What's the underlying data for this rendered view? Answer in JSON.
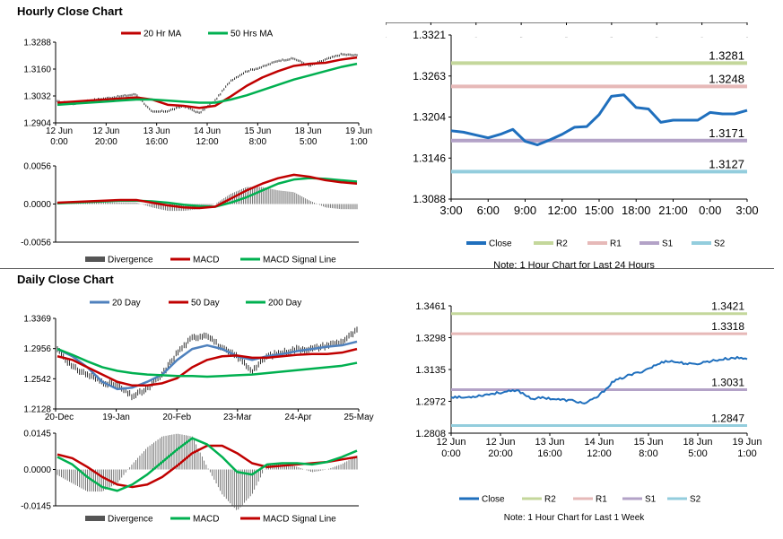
{
  "sections": {
    "hourly_title": "Hourly Close Chart",
    "daily_title": "Daily Close Chart"
  },
  "colors": {
    "ma_red": "#c00000",
    "ma_green": "#00b050",
    "ma_blue": "#4f81bd",
    "close_blue": "#1f6fbd",
    "r2": "#c4d79b",
    "r1": "#e6b9b8",
    "s1": "#b3a2c7",
    "s2": "#93cddd",
    "divergence": "#555555",
    "axis": "#000000"
  },
  "chart_data": [
    {
      "id": "hourly-price",
      "type": "line",
      "title": "",
      "legend": [
        "20 Hr MA",
        "50 Hrs MA"
      ],
      "y_ticks": [
        "1.3288",
        "1.3160",
        "1.3032",
        "1.2904"
      ],
      "ylim": [
        1.2904,
        1.3288
      ],
      "x_ticks": [
        [
          "12 Jun",
          "0:00"
        ],
        [
          "12 Jun",
          "20:00"
        ],
        [
          "13 Jun",
          "16:00"
        ],
        [
          "14 Jun",
          "12:00"
        ],
        [
          "15 Jun",
          "8:00"
        ],
        [
          "18 Jun",
          "5:00"
        ],
        [
          "19 Jun",
          "1:00"
        ]
      ],
      "close": [
        1.3005,
        1.2995,
        1.301,
        1.302,
        1.303,
        1.304,
        1.2955,
        1.296,
        1.2985,
        1.295,
        1.301,
        1.3105,
        1.315,
        1.317,
        1.32,
        1.321,
        1.3175,
        1.3205,
        1.323,
        1.3225
      ],
      "series": [
        {
          "name": "20 Hr MA",
          "values": [
            1.3,
            1.3005,
            1.301,
            1.3015,
            1.302,
            1.3025,
            1.3015,
            1.299,
            1.2985,
            1.2975,
            1.2985,
            1.303,
            1.308,
            1.312,
            1.315,
            1.3175,
            1.3185,
            1.319,
            1.3205,
            1.3215
          ]
        },
        {
          "name": "50 Hrs MA",
          "values": [
            1.299,
            1.2995,
            1.3,
            1.3005,
            1.301,
            1.3015,
            1.3015,
            1.301,
            1.3005,
            1.3,
            1.3,
            1.3015,
            1.3035,
            1.306,
            1.3085,
            1.311,
            1.313,
            1.315,
            1.317,
            1.3185
          ]
        }
      ]
    },
    {
      "id": "hourly-macd",
      "type": "line",
      "legend": [
        "Divergence",
        "MACD",
        "MACD Signal Line"
      ],
      "y_ticks": [
        "0.0056",
        "0.0000",
        "-0.0056"
      ],
      "ylim": [
        -0.0056,
        0.0056
      ],
      "macd": [
        0.0002,
        0.0003,
        0.0004,
        0.0005,
        0.0006,
        0.0006,
        0.0002,
        -0.0002,
        -0.0005,
        -0.0006,
        -0.0004,
        0.0008,
        0.002,
        0.003,
        0.0038,
        0.0043,
        0.004,
        0.0035,
        0.0032,
        0.003
      ],
      "signal": [
        0.0001,
        0.0002,
        0.0003,
        0.0004,
        0.0005,
        0.0005,
        0.0004,
        0.0002,
        -0.0001,
        -0.0003,
        -0.0004,
        0.0002,
        0.001,
        0.002,
        0.003,
        0.0036,
        0.0038,
        0.0037,
        0.0035,
        0.0033
      ]
    },
    {
      "id": "hourly-24h",
      "type": "line",
      "y_ticks": [
        "1.3321",
        "1.3263",
        "1.3204",
        "1.3146",
        "1.3088"
      ],
      "ylim": [
        1.3088,
        1.3321
      ],
      "x_ticks": [
        "3:00",
        "6:00",
        "9:00",
        "12:00",
        "15:00",
        "18:00",
        "21:00",
        "0:00",
        "3:00"
      ],
      "levels": [
        {
          "name": "R2",
          "value": 1.3281,
          "label": "1.3281"
        },
        {
          "name": "R1",
          "value": 1.3248,
          "label": "1.3248"
        },
        {
          "name": "S1",
          "value": 1.3171,
          "label": "1.3171"
        },
        {
          "name": "S2",
          "value": 1.3127,
          "label": "1.3127"
        }
      ],
      "close": [
        1.3185,
        1.3183,
        1.3179,
        1.3175,
        1.318,
        1.3187,
        1.317,
        1.3165,
        1.3172,
        1.318,
        1.319,
        1.3191,
        1.3208,
        1.3234,
        1.3236,
        1.3218,
        1.3216,
        1.3197,
        1.32,
        1.32,
        1.32,
        1.3211,
        1.3209,
        1.3209,
        1.3214
      ],
      "legend": [
        "Close",
        "R2",
        "R1",
        "S1",
        "S2"
      ],
      "note": "Note: 1 Hour Chart for Last 24 Hours"
    },
    {
      "id": "daily-price",
      "type": "line",
      "legend": [
        "20 Day",
        "50 Day",
        "200 Day"
      ],
      "y_ticks": [
        "1.3369",
        "1.2956",
        "1.2542",
        "1.2128"
      ],
      "ylim": [
        1.2128,
        1.3369
      ],
      "x_ticks": [
        "20-Dec",
        "19-Jan",
        "20-Feb",
        "23-Mar",
        "24-Apr",
        "25-May"
      ],
      "close": [
        1.295,
        1.27,
        1.26,
        1.25,
        1.245,
        1.23,
        1.24,
        1.26,
        1.29,
        1.31,
        1.315,
        1.295,
        1.285,
        1.265,
        1.285,
        1.29,
        1.295,
        1.295,
        1.3,
        1.305,
        1.32
      ],
      "series": [
        {
          "name": "20 Day",
          "values": [
            1.295,
            1.285,
            1.27,
            1.25,
            1.24,
            1.242,
            1.25,
            1.26,
            1.28,
            1.295,
            1.3,
            1.295,
            1.285,
            1.28,
            1.285,
            1.288,
            1.292,
            1.295,
            1.298,
            1.3,
            1.305
          ]
        },
        {
          "name": "50 Day",
          "values": [
            1.285,
            1.28,
            1.27,
            1.26,
            1.25,
            1.245,
            1.245,
            1.248,
            1.255,
            1.27,
            1.28,
            1.285,
            1.286,
            1.283,
            1.283,
            1.285,
            1.287,
            1.288,
            1.288,
            1.29,
            1.295
          ]
        },
        {
          "name": "200 Day",
          "values": [
            1.295,
            1.287,
            1.278,
            1.27,
            1.265,
            1.262,
            1.26,
            1.259,
            1.258,
            1.258,
            1.257,
            1.258,
            1.259,
            1.26,
            1.262,
            1.264,
            1.266,
            1.268,
            1.27,
            1.272,
            1.276
          ]
        }
      ]
    },
    {
      "id": "daily-macd",
      "type": "line",
      "legend": [
        "Divergence",
        "MACD",
        "MACD Signal Line"
      ],
      "y_ticks": [
        "0.0145",
        "0.0000",
        "-0.0145"
      ],
      "ylim": [
        -0.0145,
        0.0145
      ],
      "macd": [
        0.005,
        0.002,
        -0.003,
        -0.007,
        -0.0085,
        -0.006,
        -0.002,
        0.003,
        0.008,
        0.0125,
        0.01,
        0.005,
        -0.001,
        -0.002,
        0.002,
        0.0025,
        0.0025,
        0.002,
        0.003,
        0.005,
        0.0075
      ],
      "signal": [
        0.006,
        0.0045,
        0.001,
        -0.003,
        -0.006,
        -0.007,
        -0.006,
        -0.003,
        0.0015,
        0.0065,
        0.0095,
        0.0095,
        0.0065,
        0.0025,
        0.001,
        0.0015,
        0.002,
        0.0025,
        0.003,
        0.004,
        0.005
      ]
    },
    {
      "id": "daily-week",
      "type": "line",
      "y_ticks": [
        "1.3461",
        "1.3298",
        "1.3135",
        "1.2972",
        "1.2808"
      ],
      "ylim": [
        1.2808,
        1.3461
      ],
      "x_ticks": [
        [
          "12 Jun",
          "0:00"
        ],
        [
          "12 Jun",
          "20:00"
        ],
        [
          "13 Jun",
          "16:00"
        ],
        [
          "14 Jun",
          "12:00"
        ],
        [
          "15 Jun",
          "8:00"
        ],
        [
          "18 Jun",
          "5:00"
        ],
        [
          "19 Jun",
          "1:00"
        ]
      ],
      "levels": [
        {
          "name": "R2",
          "value": 1.3421,
          "label": "1.3421"
        },
        {
          "name": "R1",
          "value": 1.3318,
          "label": "1.3318"
        },
        {
          "name": "S1",
          "value": 1.3031,
          "label": "1.3031"
        },
        {
          "name": "S2",
          "value": 1.2847,
          "label": "1.2847"
        }
      ],
      "close": [
        1.2995,
        1.299,
        1.3,
        1.301,
        1.302,
        1.3025,
        1.2985,
        1.299,
        1.298,
        1.2975,
        1.296,
        1.3,
        1.307,
        1.31,
        1.312,
        1.315,
        1.318,
        1.317,
        1.316,
        1.3175,
        1.3185,
        1.3195,
        1.319
      ],
      "legend": [
        "Close",
        "R2",
        "R1",
        "S1",
        "S2"
      ],
      "note": "Note: 1 Hour Chart for Last 1 Week"
    }
  ]
}
